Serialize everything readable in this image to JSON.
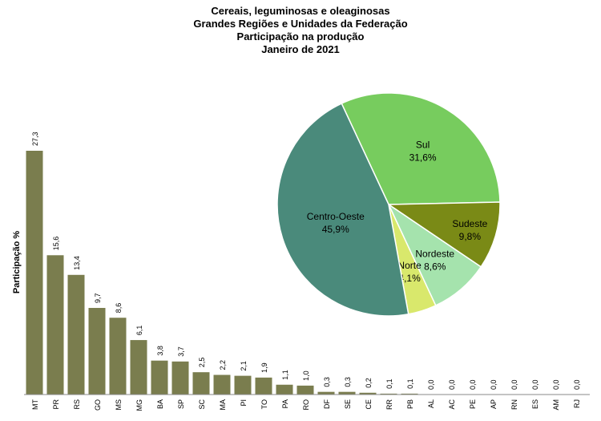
{
  "titles": [
    "Cereais, leguminosas e oleaginosas",
    "Grandes Regiões e Unidades da Federação",
    "Participação na produção",
    "Janeiro de 2021"
  ],
  "colors": {
    "bar": "#7a7d4e",
    "centro_oeste": "#4a8a7b",
    "sul": "#77cc5e",
    "sudeste": "#7a8a16",
    "nordeste": "#a5e3ad",
    "norte": "#d9e86c"
  },
  "chart_data": [
    {
      "type": "bar",
      "ylabel": "Participação %",
      "xlabel": "",
      "categories": [
        "MT",
        "PR",
        "RS",
        "GO",
        "MS",
        "MG",
        "BA",
        "SP",
        "SC",
        "MA",
        "PI",
        "TO",
        "PA",
        "RO",
        "DF",
        "SE",
        "CE",
        "RR",
        "PB",
        "AL",
        "AC",
        "PE",
        "AP",
        "RN",
        "ES",
        "AM",
        "RJ"
      ],
      "values": [
        27.3,
        15.6,
        13.4,
        9.7,
        8.6,
        6.1,
        3.8,
        3.7,
        2.5,
        2.2,
        2.1,
        1.9,
        1.1,
        1.0,
        0.3,
        0.3,
        0.2,
        0.1,
        0.1,
        0.0,
        0.0,
        0.0,
        0.0,
        0.0,
        0.0,
        0.0,
        0.0
      ],
      "value_labels": [
        "27,3",
        "15,6",
        "13,4",
        "9,7",
        "8,6",
        "6,1",
        "3,8",
        "3,7",
        "2,5",
        "2,2",
        "2,1",
        "1,9",
        "1,1",
        "1,0",
        "0,3",
        "0,3",
        "0,2",
        "0,1",
        "0,1",
        "0,0",
        "0,0",
        "0,0",
        "0,0",
        "0,0",
        "0,0",
        "0,0",
        "0,0"
      ],
      "ylim": [
        0,
        27.3
      ]
    },
    {
      "type": "pie",
      "slices": [
        {
          "name": "Sul",
          "value": 31.6,
          "label": "31,6%",
          "color_key": "sul"
        },
        {
          "name": "Sudeste",
          "value": 9.8,
          "label": "9,8%",
          "color_key": "sudeste"
        },
        {
          "name": "Nordeste",
          "value": 8.6,
          "label": "8,6%",
          "color_key": "nordeste"
        },
        {
          "name": "Norte",
          "value": 4.1,
          "label": "4,1%",
          "color_key": "norte"
        },
        {
          "name": "Centro-Oeste",
          "value": 45.9,
          "label": "45,9%",
          "color_key": "centro_oeste"
        }
      ]
    }
  ]
}
